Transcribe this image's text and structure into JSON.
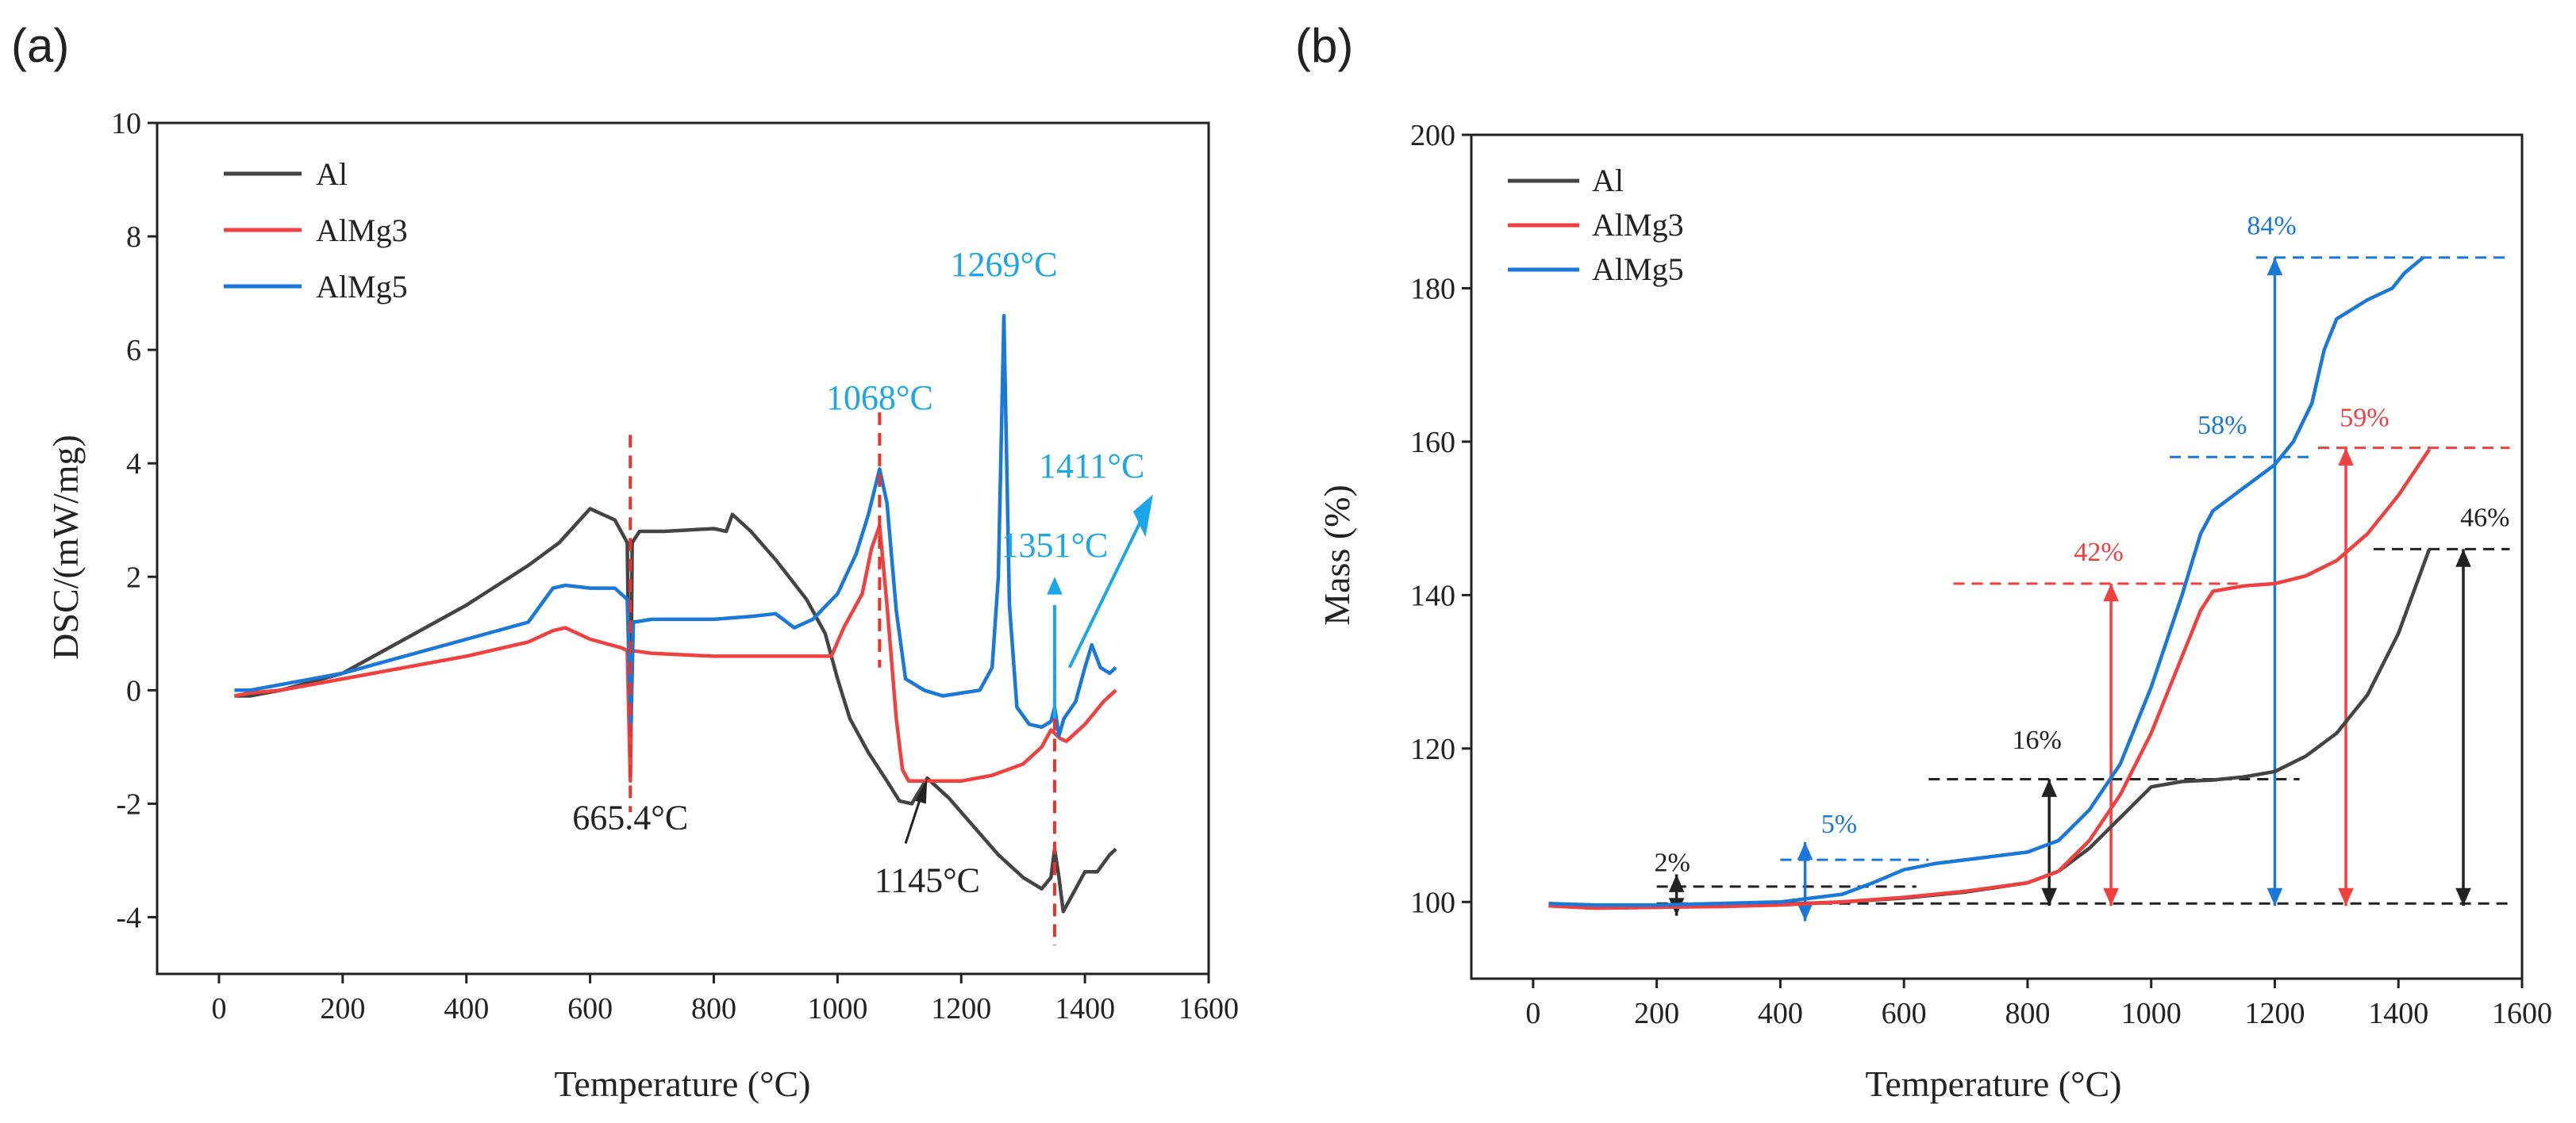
{
  "colors": {
    "Al": "#444444",
    "AlMg3": "#f04040",
    "AlMg5": "#1a78d8",
    "annot_blue": "#1aa6e8"
  },
  "chart_data": [
    {
      "panel": "(a)",
      "type": "line",
      "xlabel": "Temperature (°C)",
      "ylabel": "DSC/(mW/mg)",
      "xlim": [
        -100,
        1600
      ],
      "ylim": [
        -5,
        10
      ],
      "xticks": [
        0,
        200,
        400,
        600,
        800,
        1000,
        1200,
        1400,
        1600
      ],
      "yticks": [
        -4,
        -2,
        0,
        2,
        4,
        6,
        8,
        10
      ],
      "legend": [
        "Al",
        "AlMg3",
        "AlMg5"
      ],
      "series": [
        {
          "name": "Al",
          "points": [
            [
              25,
              -0.1
            ],
            [
              50,
              -0.1
            ],
            [
              100,
              0
            ],
            [
              200,
              0.3
            ],
            [
              300,
              0.9
            ],
            [
              400,
              1.5
            ],
            [
              500,
              2.2
            ],
            [
              550,
              2.6
            ],
            [
              600,
              3.2
            ],
            [
              640,
              3
            ],
            [
              660,
              2.6
            ],
            [
              665,
              -1.5
            ],
            [
              668,
              2.6
            ],
            [
              680,
              2.8
            ],
            [
              720,
              2.8
            ],
            [
              800,
              2.85
            ],
            [
              820,
              2.8
            ],
            [
              830,
              3.1
            ],
            [
              860,
              2.8
            ],
            [
              900,
              2.3
            ],
            [
              950,
              1.6
            ],
            [
              980,
              1
            ],
            [
              1000,
              0.2
            ],
            [
              1020,
              -0.5
            ],
            [
              1050,
              -1.1
            ],
            [
              1080,
              -1.6
            ],
            [
              1100,
              -1.95
            ],
            [
              1120,
              -2
            ],
            [
              1145,
              -1.55
            ],
            [
              1180,
              -1.9
            ],
            [
              1220,
              -2.4
            ],
            [
              1260,
              -2.9
            ],
            [
              1300,
              -3.3
            ],
            [
              1330,
              -3.5
            ],
            [
              1345,
              -3.3
            ],
            [
              1351,
              -2.8
            ],
            [
              1358,
              -3.3
            ],
            [
              1365,
              -3.9
            ],
            [
              1380,
              -3.6
            ],
            [
              1400,
              -3.2
            ],
            [
              1420,
              -3.2
            ],
            [
              1440,
              -2.9
            ],
            [
              1450,
              -2.8
            ]
          ]
        },
        {
          "name": "AlMg3",
          "points": [
            [
              25,
              -0.1
            ],
            [
              50,
              -0.05
            ],
            [
              100,
              0
            ],
            [
              200,
              0.2
            ],
            [
              300,
              0.4
            ],
            [
              400,
              0.6
            ],
            [
              500,
              0.85
            ],
            [
              540,
              1.05
            ],
            [
              560,
              1.1
            ],
            [
              600,
              0.9
            ],
            [
              650,
              0.75
            ],
            [
              660,
              0.7
            ],
            [
              665,
              -1.6
            ],
            [
              668,
              0.7
            ],
            [
              700,
              0.65
            ],
            [
              800,
              0.6
            ],
            [
              900,
              0.6
            ],
            [
              950,
              0.6
            ],
            [
              990,
              0.6
            ],
            [
              1010,
              1.1
            ],
            [
              1040,
              1.7
            ],
            [
              1055,
              2.5
            ],
            [
              1068,
              2.9
            ],
            [
              1080,
              1.5
            ],
            [
              1095,
              -0.5
            ],
            [
              1105,
              -1.4
            ],
            [
              1115,
              -1.6
            ],
            [
              1150,
              -1.6
            ],
            [
              1200,
              -1.6
            ],
            [
              1250,
              -1.5
            ],
            [
              1300,
              -1.3
            ],
            [
              1330,
              -1
            ],
            [
              1345,
              -0.7
            ],
            [
              1360,
              -0.85
            ],
            [
              1370,
              -0.9
            ],
            [
              1400,
              -0.6
            ],
            [
              1430,
              -0.2
            ],
            [
              1450,
              0
            ]
          ]
        },
        {
          "name": "AlMg5",
          "points": [
            [
              25,
              0
            ],
            [
              50,
              0
            ],
            [
              100,
              0.1
            ],
            [
              200,
              0.3
            ],
            [
              300,
              0.6
            ],
            [
              400,
              0.9
            ],
            [
              500,
              1.2
            ],
            [
              520,
              1.5
            ],
            [
              540,
              1.8
            ],
            [
              560,
              1.85
            ],
            [
              600,
              1.8
            ],
            [
              640,
              1.8
            ],
            [
              660,
              1.6
            ],
            [
              666,
              -0.7
            ],
            [
              670,
              1.2
            ],
            [
              700,
              1.25
            ],
            [
              800,
              1.25
            ],
            [
              860,
              1.3
            ],
            [
              900,
              1.35
            ],
            [
              930,
              1.1
            ],
            [
              960,
              1.25
            ],
            [
              1000,
              1.7
            ],
            [
              1030,
              2.4
            ],
            [
              1050,
              3.1
            ],
            [
              1068,
              3.9
            ],
            [
              1080,
              3.3
            ],
            [
              1095,
              1.4
            ],
            [
              1110,
              0.2
            ],
            [
              1140,
              0
            ],
            [
              1170,
              -0.1
            ],
            [
              1200,
              -0.05
            ],
            [
              1230,
              0
            ],
            [
              1250,
              0.4
            ],
            [
              1260,
              2
            ],
            [
              1269,
              6.6
            ],
            [
              1278,
              1.5
            ],
            [
              1290,
              -0.3
            ],
            [
              1310,
              -0.6
            ],
            [
              1330,
              -0.65
            ],
            [
              1345,
              -0.55
            ],
            [
              1351,
              -0.3
            ],
            [
              1358,
              -0.8
            ],
            [
              1366,
              -0.5
            ],
            [
              1385,
              -0.2
            ],
            [
              1400,
              0.4
            ],
            [
              1411,
              0.8
            ],
            [
              1425,
              0.4
            ],
            [
              1440,
              0.3
            ],
            [
              1450,
              0.4
            ]
          ]
        }
      ],
      "annotations": [
        {
          "text": "665.4°C",
          "x": 665,
          "y": -2.45
        },
        {
          "text": "1145°C",
          "x": 1145,
          "y": -3.55
        },
        {
          "text": "1068°C",
          "x": 1068,
          "y": 4.95
        },
        {
          "text": "1269°C",
          "x": 1269,
          "y": 7.3
        },
        {
          "text": "1351°C",
          "x": 1351,
          "y": 2.35
        },
        {
          "text": "1411°C",
          "x": 1411,
          "y": 3.75
        }
      ]
    },
    {
      "panel": "(b)",
      "type": "line",
      "xlabel": "Temperature (°C)",
      "ylabel": "Mass (%)",
      "xlim": [
        -100,
        1600
      ],
      "ylim": [
        90,
        200
      ],
      "xticks": [
        0,
        200,
        400,
        600,
        800,
        1000,
        1200,
        1400,
        1600
      ],
      "yticks": [
        100,
        120,
        140,
        160,
        180,
        200
      ],
      "legend": [
        "Al",
        "AlMg3",
        "AlMg5"
      ],
      "series": [
        {
          "name": "Al",
          "points": [
            [
              25,
              99.5
            ],
            [
              100,
              99.2
            ],
            [
              200,
              99.3
            ],
            [
              300,
              99.5
            ],
            [
              400,
              99.7
            ],
            [
              500,
              100
            ],
            [
              600,
              100.5
            ],
            [
              700,
              101.3
            ],
            [
              800,
              102.5
            ],
            [
              850,
              104
            ],
            [
              900,
              107
            ],
            [
              950,
              111
            ],
            [
              1000,
              115
            ],
            [
              1050,
              115.7
            ],
            [
              1100,
              115.9
            ],
            [
              1150,
              116.3
            ],
            [
              1200,
              117
            ],
            [
              1250,
              119
            ],
            [
              1300,
              122
            ],
            [
              1350,
              127
            ],
            [
              1400,
              135
            ],
            [
              1450,
              146
            ]
          ]
        },
        {
          "name": "AlMg3",
          "points": [
            [
              25,
              99.5
            ],
            [
              100,
              99.2
            ],
            [
              200,
              99.3
            ],
            [
              300,
              99.4
            ],
            [
              400,
              99.6
            ],
            [
              500,
              100
            ],
            [
              600,
              100.6
            ],
            [
              700,
              101.4
            ],
            [
              800,
              102.5
            ],
            [
              850,
              104
            ],
            [
              900,
              108
            ],
            [
              950,
              114
            ],
            [
              1000,
              122
            ],
            [
              1050,
              132
            ],
            [
              1080,
              138
            ],
            [
              1100,
              140.5
            ],
            [
              1150,
              141.2
            ],
            [
              1200,
              141.5
            ],
            [
              1250,
              142.5
            ],
            [
              1300,
              144.5
            ],
            [
              1350,
              148
            ],
            [
              1400,
              153
            ],
            [
              1450,
              159
            ]
          ]
        },
        {
          "name": "AlMg5",
          "points": [
            [
              25,
              99.8
            ],
            [
              100,
              99.6
            ],
            [
              200,
              99.6
            ],
            [
              300,
              99.8
            ],
            [
              400,
              100
            ],
            [
              500,
              101
            ],
            [
              550,
              102.5
            ],
            [
              600,
              104.2
            ],
            [
              650,
              105
            ],
            [
              700,
              105.5
            ],
            [
              800,
              106.5
            ],
            [
              850,
              108
            ],
            [
              900,
              112
            ],
            [
              950,
              118
            ],
            [
              1000,
              128
            ],
            [
              1050,
              140
            ],
            [
              1080,
              148
            ],
            [
              1100,
              151
            ],
            [
              1150,
              154
            ],
            [
              1200,
              157
            ],
            [
              1230,
              160
            ],
            [
              1260,
              165
            ],
            [
              1280,
              172
            ],
            [
              1300,
              176
            ],
            [
              1350,
              178.5
            ],
            [
              1390,
              180
            ],
            [
              1410,
              182
            ],
            [
              1440,
              184
            ]
          ]
        }
      ],
      "annotations": [
        {
          "text": "2%",
          "color": "black",
          "x": 225,
          "y": 104
        },
        {
          "text": "5%",
          "color": "blue",
          "x": 495,
          "y": 109
        },
        {
          "text": "16%",
          "color": "black",
          "x": 815,
          "y": 120
        },
        {
          "text": "42%",
          "color": "red",
          "x": 915,
          "y": 144.5
        },
        {
          "text": "58%",
          "color": "blue",
          "x": 1115,
          "y": 161
        },
        {
          "text": "59%",
          "color": "red",
          "x": 1345,
          "y": 162
        },
        {
          "text": "46%",
          "color": "black",
          "x": 1540,
          "y": 149
        },
        {
          "text": "84%",
          "color": "blue",
          "x": 1195,
          "y": 187
        }
      ]
    }
  ]
}
